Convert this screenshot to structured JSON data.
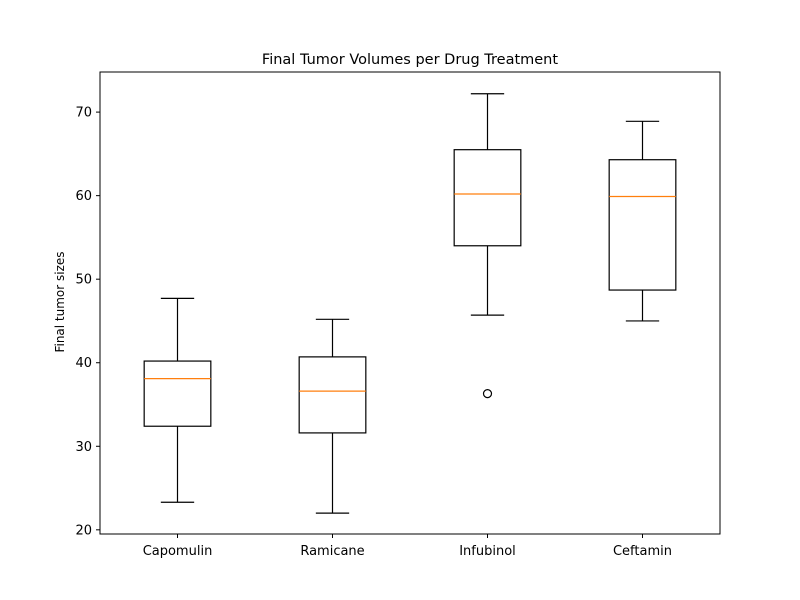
{
  "chart_data": {
    "type": "box",
    "title": "Final Tumor Volumes per Drug Treatment",
    "xlabel": "",
    "ylabel": "Final tumor sizes",
    "categories": [
      "Capomulin",
      "Ramicane",
      "Infubinol",
      "Ceftamin"
    ],
    "ylim": [
      19.5,
      74.8
    ],
    "yticks": [
      20,
      30,
      40,
      50,
      60,
      70
    ],
    "grid": false,
    "boxes": [
      {
        "name": "Capomulin",
        "whisker_low": 23.3,
        "q1": 32.4,
        "median": 38.1,
        "q3": 40.2,
        "whisker_high": 47.7,
        "outliers": []
      },
      {
        "name": "Ramicane",
        "whisker_low": 22.0,
        "q1": 31.6,
        "median": 36.6,
        "q3": 40.7,
        "whisker_high": 45.2,
        "outliers": []
      },
      {
        "name": "Infubinol",
        "whisker_low": 45.7,
        "q1": 54.0,
        "median": 60.2,
        "q3": 65.5,
        "whisker_high": 72.2,
        "outliers": [
          36.3
        ]
      },
      {
        "name": "Ceftamin",
        "whisker_low": 45.0,
        "q1": 48.7,
        "median": 59.9,
        "q3": 64.3,
        "whisker_high": 68.9,
        "outliers": []
      }
    ],
    "colors": {
      "box": "#000000",
      "median": "#ff7f0e",
      "outlier": "#000000"
    }
  }
}
